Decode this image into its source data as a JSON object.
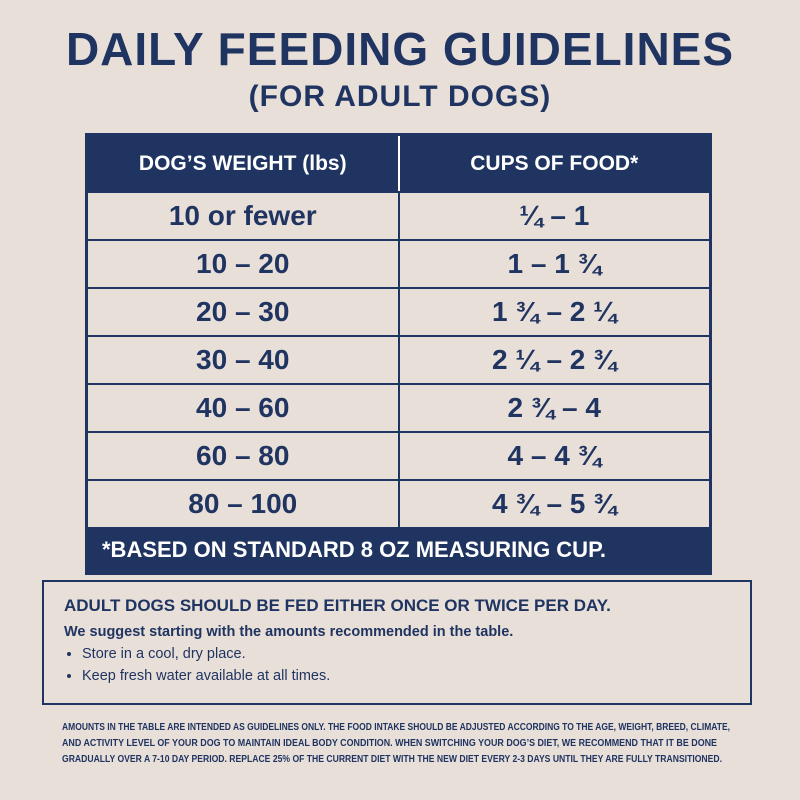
{
  "header": {
    "title": "DAILY FEEDING GUIDELINES",
    "subtitle": "(FOR ADULT DOGS)"
  },
  "table": {
    "headers": [
      "DOG’S WEIGHT (lbs)",
      "CUPS OF FOOD*"
    ],
    "rows": [
      [
        "10 or fewer",
        "¼ – 1"
      ],
      [
        "10 – 20",
        "1 – 1 ¾"
      ],
      [
        "20 – 30",
        "1 ¾ – 2 ¼"
      ],
      [
        "30 – 40",
        "2 ¼ – 2 ¾"
      ],
      [
        "40 – 60",
        "2 ¾ – 4"
      ],
      [
        "60 – 80",
        "4 – 4 ¾"
      ],
      [
        "80 – 100",
        "4 ¾ – 5 ¾"
      ]
    ],
    "footnote": "*BASED ON STANDARD 8 OZ MEASURING CUP."
  },
  "info": {
    "heading": "ADULT DOGS SHOULD BE FED EITHER ONCE OR TWICE PER DAY.",
    "subheading": "We suggest starting with the amounts recommended in the table.",
    "bullets": [
      "Store in a cool, dry place.",
      "Keep fresh water available at all times."
    ]
  },
  "disclaimer": [
    "AMOUNTS IN THE TABLE ARE INTENDED AS GUIDELINES ONLY. THE FOOD INTAKE SHOULD BE ADJUSTED ACCORDING TO THE AGE, WEIGHT, BREED, CLIMATE,",
    "AND ACTIVITY LEVEL OF YOUR DOG TO MAINTAIN IDEAL BODY CONDITION. WHEN SWITCHING YOUR DOG’S DIET, WE RECOMMEND THAT IT BE DONE",
    "GRADUALLY OVER A 7-10 DAY PERIOD. REPLACE 25% OF THE CURRENT DIET WITH THE NEW DIET EVERY 2-3 DAYS UNTIL THEY ARE FULLY TRANSITIONED."
  ]
}
